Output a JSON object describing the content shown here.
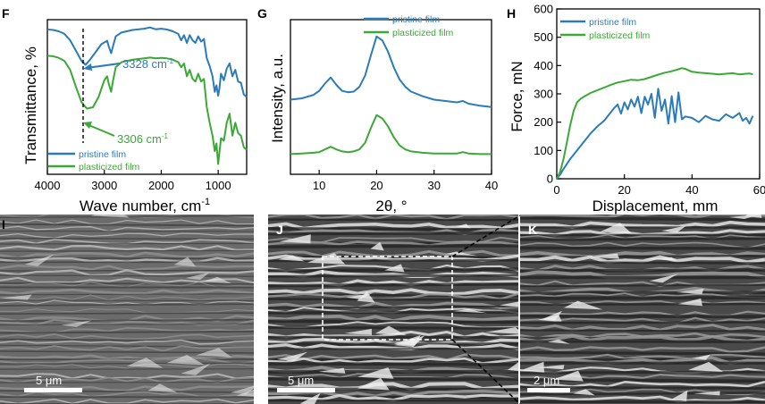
{
  "colors": {
    "pristine": "#2b7bb9",
    "plasticized": "#3aa935",
    "axis": "#000000",
    "sem_dark": "#3c3c3c",
    "sem_light": "#d6d6d6"
  },
  "panels": {
    "F": {
      "letter": "F"
    },
    "G": {
      "letter": "G"
    },
    "H": {
      "letter": "H"
    },
    "I": {
      "letter": "I",
      "scalebar": "5 μm"
    },
    "J": {
      "letter": "J",
      "scalebar": "5 μm"
    },
    "K": {
      "letter": "K",
      "scalebar": "2 μm"
    }
  },
  "chart_data": [
    {
      "id": "F",
      "type": "line",
      "xlabel": "Wave number, cm",
      "xlabel_sup": "-1",
      "ylabel": "Transmittance, %",
      "xlim": [
        4000,
        500
      ],
      "x_ticks": [
        4000,
        3000,
        2000,
        1000
      ],
      "y_ticks_shown": false,
      "legend": {
        "placement": "bottom-left",
        "entries": [
          "pristine film",
          "plasticized film"
        ]
      },
      "annotations": [
        {
          "text": "3328 cm",
          "sup": "-1",
          "x": 3328,
          "series": "pristine film"
        },
        {
          "text": "3306 cm",
          "sup": "-1",
          "x": 3306,
          "series": "plasticized film"
        }
      ],
      "series": [
        {
          "name": "pristine film",
          "x": [
            4000,
            3900,
            3800,
            3700,
            3600,
            3500,
            3400,
            3328,
            3250,
            3150,
            3050,
            2950,
            2920,
            2880,
            2850,
            2800,
            2700,
            2500,
            2300,
            2200,
            2100,
            2000,
            1900,
            1800,
            1700,
            1650,
            1600,
            1550,
            1500,
            1450,
            1400,
            1350,
            1300,
            1250,
            1200,
            1150,
            1100,
            1060,
            1030,
            1000,
            980,
            950,
            900,
            850,
            800,
            750,
            700,
            650,
            600,
            550,
            500
          ],
          "y": [
            96.2,
            96.0,
            95.5,
            94.5,
            92.0,
            88.0,
            84.0,
            82.5,
            84.5,
            87.5,
            90.5,
            91.8,
            89.5,
            87.0,
            89.5,
            93.5,
            95.0,
            96.0,
            96.5,
            97.0,
            96.3,
            96.5,
            96.2,
            95.5,
            94.5,
            92.0,
            94.0,
            91.0,
            94.0,
            92.0,
            91.0,
            93.5,
            91.5,
            92.5,
            85.0,
            82.0,
            78.0,
            72.0,
            74.5,
            70.5,
            73.0,
            79.0,
            76.5,
            81.0,
            83.0,
            78.0,
            80.5,
            76.0,
            75.5,
            71.0,
            70.0
          ]
        },
        {
          "name": "plasticized film",
          "x": [
            4000,
            3900,
            3800,
            3700,
            3600,
            3500,
            3400,
            3306,
            3200,
            3100,
            3000,
            2950,
            2920,
            2880,
            2850,
            2800,
            2700,
            2500,
            2300,
            2200,
            2100,
            2000,
            1900,
            1800,
            1700,
            1650,
            1600,
            1550,
            1500,
            1450,
            1400,
            1350,
            1300,
            1250,
            1200,
            1150,
            1100,
            1060,
            1030,
            1000,
            980,
            950,
            900,
            850,
            800,
            750,
            700,
            650,
            600,
            550,
            500
          ],
          "y": [
            86.0,
            85.8,
            85.2,
            84.0,
            80.5,
            74.0,
            68.0,
            65.5,
            66.0,
            70.0,
            76.5,
            78.0,
            75.0,
            72.0,
            76.0,
            81.5,
            83.5,
            84.5,
            85.0,
            85.3,
            85.0,
            85.2,
            85.0,
            84.5,
            83.5,
            81.5,
            83.0,
            78.0,
            80.5,
            77.0,
            76.0,
            79.0,
            76.0,
            77.0,
            66.0,
            60.0,
            55.0,
            49.0,
            52.0,
            44.0,
            48.0,
            54.0,
            53.0,
            60.0,
            63.5,
            55.0,
            60.0,
            56.0,
            55.0,
            50.5,
            49.5
          ]
        }
      ]
    },
    {
      "id": "G",
      "type": "line",
      "xlabel": "2θ, °",
      "ylabel": "Intensity, a.u.",
      "xlim": [
        5,
        40
      ],
      "x_ticks": [
        10,
        20,
        30,
        40
      ],
      "y_ticks_shown": false,
      "legend": {
        "placement": "top-right",
        "entries": [
          "pristine film",
          "plasticized film"
        ]
      },
      "series": [
        {
          "name": "pristine film",
          "x": [
            5,
            7,
            9,
            10,
            11,
            12,
            13,
            14,
            15,
            16,
            17,
            18,
            19,
            20,
            21,
            22,
            23,
            24,
            25,
            26,
            28,
            30,
            32,
            34,
            35,
            36,
            38,
            40
          ],
          "y": [
            0.86,
            0.88,
            0.93,
            0.99,
            1.1,
            1.19,
            1.08,
            0.99,
            0.97,
            0.98,
            1.05,
            1.22,
            1.52,
            1.8,
            1.74,
            1.57,
            1.34,
            1.16,
            1.05,
            0.98,
            0.91,
            0.86,
            0.84,
            0.82,
            0.84,
            0.8,
            0.77,
            0.75
          ]
        },
        {
          "name": "plasticized film",
          "x": [
            5,
            7,
            9,
            10,
            11,
            12,
            13,
            14,
            15,
            16,
            17,
            18,
            19,
            20,
            21,
            22,
            23,
            24,
            25,
            26,
            28,
            30,
            32,
            34,
            35,
            36,
            38,
            40
          ],
          "y": [
            0.05,
            0.06,
            0.07,
            0.08,
            0.12,
            0.16,
            0.12,
            0.09,
            0.08,
            0.09,
            0.12,
            0.22,
            0.44,
            0.63,
            0.58,
            0.46,
            0.3,
            0.18,
            0.12,
            0.09,
            0.07,
            0.06,
            0.06,
            0.06,
            0.08,
            0.06,
            0.05,
            0.05
          ]
        }
      ]
    },
    {
      "id": "H",
      "type": "line",
      "xlabel": "Displacement, mm",
      "ylabel": "Force, mN",
      "xlim": [
        0,
        60
      ],
      "ylim": [
        0,
        600
      ],
      "x_ticks": [
        0,
        20,
        40,
        60
      ],
      "y_ticks": [
        0,
        100,
        200,
        300,
        400,
        500,
        600
      ],
      "legend": {
        "placement": "top-left",
        "entries": [
          "pristine film",
          "plasticized film"
        ]
      },
      "series": [
        {
          "name": "pristine film",
          "x": [
            0,
            1,
            2,
            4,
            6,
            8,
            10,
            12,
            14,
            16,
            17,
            18,
            19,
            20,
            21,
            22,
            23,
            24,
            25,
            26,
            27,
            28,
            29,
            30,
            31,
            32,
            33,
            34,
            35,
            36,
            37,
            38,
            40,
            42,
            44,
            46,
            48,
            50,
            52,
            54,
            55,
            56,
            57,
            58
          ],
          "y": [
            0,
            15,
            35,
            70,
            100,
            130,
            160,
            185,
            205,
            235,
            250,
            262,
            230,
            270,
            245,
            280,
            255,
            290,
            232,
            290,
            262,
            300,
            215,
            318,
            240,
            280,
            195,
            292,
            200,
            305,
            210,
            220,
            215,
            200,
            222,
            210,
            205,
            228,
            215,
            232,
            205,
            215,
            195,
            222
          ]
        },
        {
          "name": "plasticized film",
          "x": [
            0,
            1,
            2,
            3,
            4,
            5,
            6,
            7,
            8,
            10,
            12,
            14,
            16,
            18,
            20,
            22,
            24,
            26,
            28,
            30,
            32,
            34,
            36,
            37,
            38,
            40,
            42,
            44,
            46,
            48,
            50,
            52,
            54,
            56,
            57,
            58
          ],
          "y": [
            0,
            25,
            70,
            130,
            190,
            240,
            270,
            282,
            290,
            303,
            313,
            322,
            332,
            340,
            345,
            350,
            348,
            352,
            360,
            368,
            375,
            380,
            387,
            391,
            388,
            378,
            375,
            373,
            371,
            369,
            371,
            373,
            369,
            371,
            372,
            369
          ]
        }
      ]
    }
  ]
}
